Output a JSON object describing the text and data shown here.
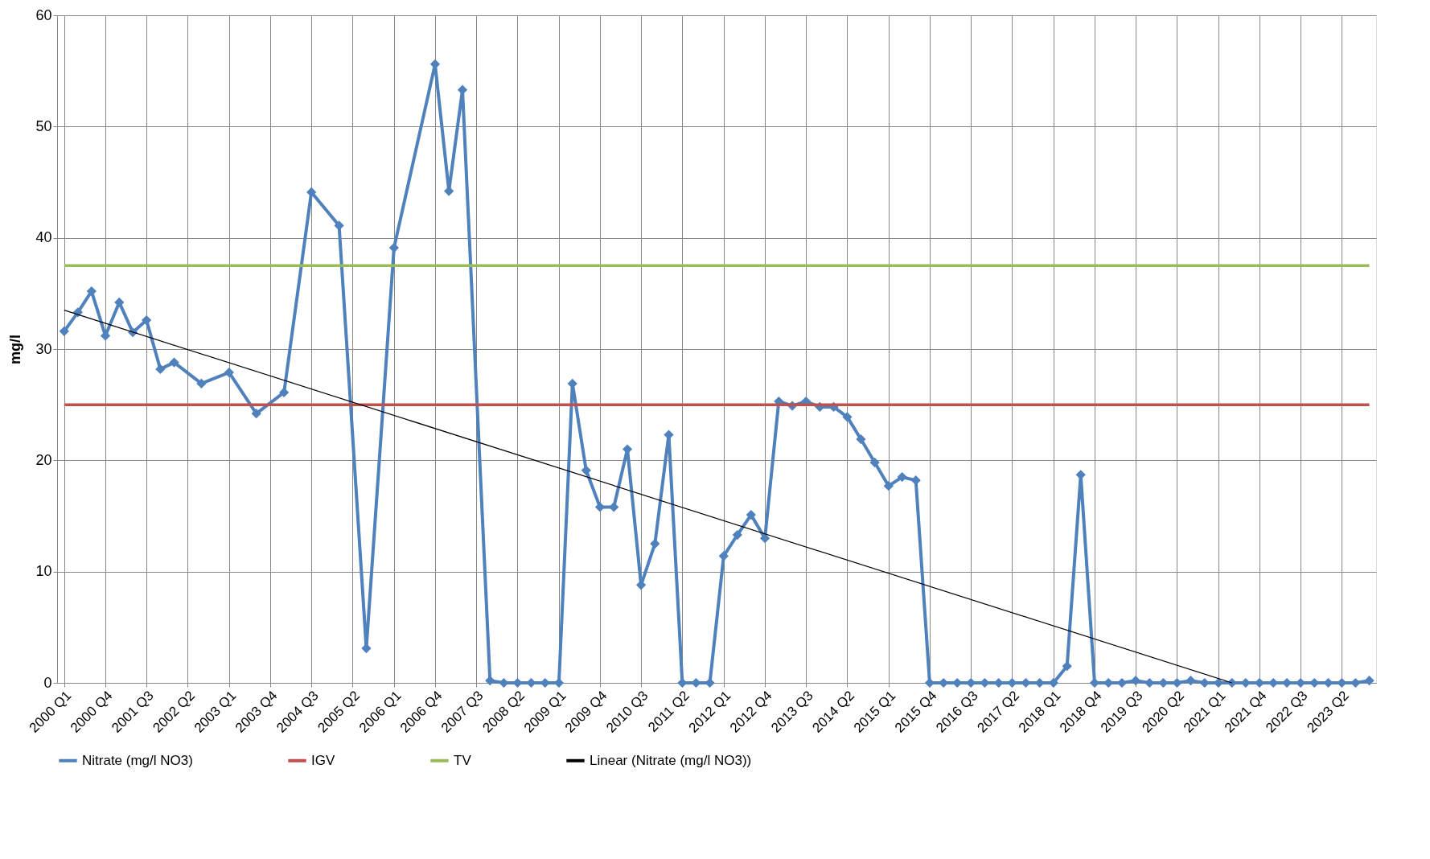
{
  "chart_data": {
    "type": "line",
    "ylabel": "mg/l",
    "xlim": [
      "1999-11-15",
      "2023-11-15"
    ],
    "xticks": [
      {
        "value": "2000-01",
        "label": "2000 Q1"
      },
      {
        "value": "2000-10",
        "label": "2000 Q4"
      },
      {
        "value": "2001-07",
        "label": "2001 Q3"
      },
      {
        "value": "2002-04",
        "label": "2002 Q2"
      },
      {
        "value": "2003-01",
        "label": "2003 Q1"
      },
      {
        "value": "2003-10",
        "label": "2003 Q4"
      },
      {
        "value": "2004-07",
        "label": "2004 Q3"
      },
      {
        "value": "2005-04",
        "label": "2005 Q2"
      },
      {
        "value": "2006-01",
        "label": "2006 Q1"
      },
      {
        "value": "2006-10",
        "label": "2006 Q4"
      },
      {
        "value": "2007-07",
        "label": "2007 Q3"
      },
      {
        "value": "2008-04",
        "label": "2008 Q2"
      },
      {
        "value": "2009-01",
        "label": "2009 Q1"
      },
      {
        "value": "2009-10",
        "label": "2009 Q4"
      },
      {
        "value": "2010-07",
        "label": "2010 Q3"
      },
      {
        "value": "2011-04",
        "label": "2011 Q2"
      },
      {
        "value": "2012-01",
        "label": "2012 Q1"
      },
      {
        "value": "2012-10",
        "label": "2012 Q4"
      },
      {
        "value": "2013-07",
        "label": "2013 Q3"
      },
      {
        "value": "2014-04",
        "label": "2014 Q2"
      },
      {
        "value": "2015-01",
        "label": "2015 Q1"
      },
      {
        "value": "2015-10",
        "label": "2015 Q4"
      },
      {
        "value": "2016-07",
        "label": "2016 Q3"
      },
      {
        "value": "2017-04",
        "label": "2017 Q2"
      },
      {
        "value": "2018-01",
        "label": "2018 Q1"
      },
      {
        "value": "2018-10",
        "label": "2018 Q4"
      },
      {
        "value": "2019-07",
        "label": "2019 Q3"
      },
      {
        "value": "2020-04",
        "label": "2020 Q2"
      },
      {
        "value": "2021-01",
        "label": "2021 Q1"
      },
      {
        "value": "2021-10",
        "label": "2021 Q4"
      },
      {
        "value": "2022-07",
        "label": "2022 Q3"
      },
      {
        "value": "2023-04",
        "label": "2023 Q2"
      }
    ],
    "ylim": [
      0,
      60
    ],
    "yticks": [
      0,
      10,
      20,
      30,
      40,
      50,
      60
    ],
    "grid": true,
    "legend": "bottom",
    "series": [
      {
        "name": "Nitrate (mg/l NO3)",
        "color": "#4f81bd",
        "marker": "diamond",
        "x": [
          "2000-01",
          "2000-04",
          "2000-07",
          "2000-10",
          "2001-01",
          "2001-04",
          "2001-07",
          "2001-10",
          "2002-01",
          "2002-07",
          "2003-01",
          "2003-07",
          "2004-01",
          "2004-07",
          "2005-01",
          "2005-07",
          "2006-01",
          "2006-10",
          "2007-01",
          "2007-04",
          "2007-10",
          "2008-01",
          "2008-04",
          "2008-07",
          "2008-10",
          "2009-01",
          "2009-04",
          "2009-07",
          "2009-10",
          "2010-01",
          "2010-04",
          "2010-07",
          "2010-10",
          "2011-01",
          "2011-04",
          "2011-07",
          "2011-10",
          "2012-01",
          "2012-04",
          "2012-07",
          "2012-10",
          "2013-01",
          "2013-04",
          "2013-07",
          "2013-10",
          "2014-01",
          "2014-04",
          "2014-07",
          "2014-10",
          "2015-01",
          "2015-04",
          "2015-07",
          "2015-10",
          "2016-01",
          "2016-04",
          "2016-07",
          "2016-10",
          "2017-01",
          "2017-04",
          "2017-07",
          "2017-10",
          "2018-01",
          "2018-04",
          "2018-07",
          "2018-10",
          "2019-01",
          "2019-04",
          "2019-07",
          "2019-10",
          "2020-01",
          "2020-04",
          "2020-07",
          "2020-10",
          "2021-01",
          "2021-04",
          "2021-07",
          "2021-10",
          "2022-01",
          "2022-04",
          "2022-07",
          "2022-10",
          "2023-01",
          "2023-04",
          "2023-07",
          "2023-10"
        ],
        "values": [
          31.6,
          33.3,
          35.2,
          31.2,
          34.2,
          31.5,
          32.6,
          28.2,
          28.8,
          26.9,
          27.9,
          24.2,
          26.1,
          44.1,
          41.1,
          3.1,
          39.1,
          55.6,
          44.2,
          53.3,
          0.2,
          0,
          0,
          0,
          0,
          0,
          26.9,
          19.1,
          15.8,
          15.8,
          21.0,
          8.8,
          12.5,
          22.3,
          0,
          0,
          0,
          11.4,
          13.3,
          15.1,
          13.0,
          25.3,
          24.9,
          25.3,
          24.8,
          24.8,
          23.9,
          21.9,
          19.8,
          17.7,
          18.5,
          18.2,
          0,
          0,
          0,
          0,
          0,
          0,
          0,
          0,
          0,
          0,
          1.5,
          18.7,
          0,
          0,
          0,
          0.2,
          0,
          0,
          0,
          0.2,
          0,
          0,
          0,
          0,
          0,
          0,
          0,
          0,
          0,
          0,
          0,
          0,
          0.2
        ]
      },
      {
        "name": "IGV",
        "color": "#c0504d",
        "marker": "none",
        "x": [
          "2000-01",
          "2023-10"
        ],
        "values": [
          25,
          25
        ]
      },
      {
        "name": "TV",
        "color": "#9bbb59",
        "marker": "none",
        "x": [
          "2000-01",
          "2023-10"
        ],
        "values": [
          37.5,
          37.5
        ]
      },
      {
        "name": "Linear (Nitrate (mg/l NO3))",
        "color": "#000000",
        "marker": "none",
        "x": [
          "2000-01",
          "2021-04"
        ],
        "values": [
          33.5,
          0
        ]
      }
    ]
  }
}
